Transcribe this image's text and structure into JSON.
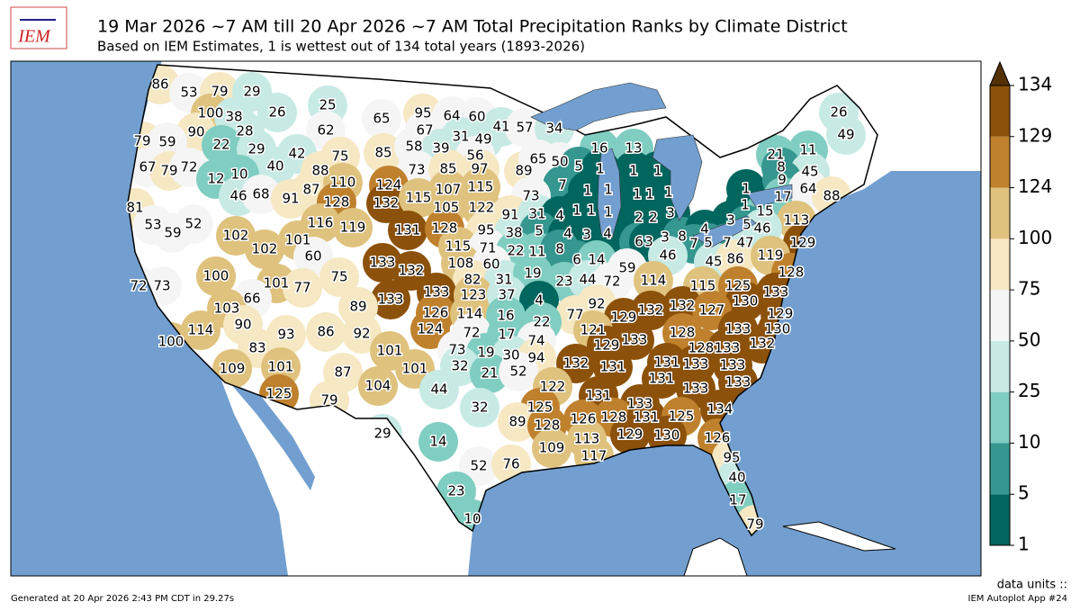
{
  "header": {
    "title": "19 Mar 2026 ~7 AM till 20 Apr 2026 ~7 AM Total Precipitation Ranks by Climate District",
    "subtitle": "Based on IEM Estimates, 1 is wettest out of 134 total years (1893-2026)",
    "logo": "IEM"
  },
  "map": {
    "ranks": [
      86,
      53,
      79,
      29,
      100,
      38,
      90,
      28,
      26,
      25,
      65,
      95,
      64,
      60,
      62,
      67,
      31,
      49,
      41,
      57,
      34,
      79,
      59,
      22,
      29,
      42,
      75,
      85,
      58,
      39,
      56,
      16,
      13,
      21,
      11,
      26,
      49,
      67,
      79,
      72,
      40,
      88,
      73,
      85,
      97,
      89,
      65,
      50,
      5,
      1,
      1,
      1,
      8,
      45,
      12,
      10,
      87,
      110,
      124,
      107,
      115,
      7,
      1,
      1,
      1,
      1,
      1,
      1,
      9,
      17,
      64,
      88,
      81,
      46,
      68,
      91,
      128,
      132,
      115,
      105,
      122,
      73,
      91,
      31,
      4,
      1,
      1,
      1,
      2,
      2,
      3,
      1,
      3,
      15,
      113,
      53,
      52,
      116,
      119,
      131,
      128,
      95,
      38,
      5,
      4,
      3,
      4,
      5,
      46,
      59,
      102,
      102,
      101,
      115,
      71,
      22,
      11,
      8,
      6,
      3,
      3,
      8,
      4,
      7,
      5,
      7,
      47,
      129,
      60,
      108,
      60,
      6,
      14,
      46,
      45,
      86,
      119,
      133,
      132,
      128,
      100,
      75,
      82,
      31,
      19,
      59,
      72,
      73,
      101,
      77,
      133,
      133,
      123,
      37,
      23,
      44,
      72,
      114,
      115,
      125,
      133,
      66,
      89,
      4,
      92,
      130,
      129,
      103,
      126,
      114,
      16,
      77,
      132,
      132,
      127,
      22,
      129,
      90,
      93,
      86,
      92,
      124,
      72,
      17,
      74,
      121,
      128,
      133,
      130,
      114,
      100,
      129,
      133,
      128,
      133,
      132,
      83,
      101,
      73,
      19,
      30,
      94,
      132,
      131,
      131,
      133,
      133,
      109,
      101,
      87,
      101,
      32,
      21,
      52,
      131,
      133,
      104,
      44,
      122,
      131,
      133,
      125,
      79,
      133,
      32,
      125,
      134,
      89,
      128,
      126,
      128,
      131,
      125,
      29,
      113,
      129,
      130,
      126,
      14,
      109,
      117,
      95,
      52,
      76,
      40,
      23,
      17,
      10,
      79
    ]
  },
  "colorbar": {
    "ticks": [
      1,
      5,
      10,
      25,
      50,
      75,
      100,
      124,
      129,
      134
    ],
    "colors": [
      "#01665e",
      "#35978f",
      "#80cdc1",
      "#c7eae5",
      "#f5f5f5",
      "#f6e8c3",
      "#dfc27d",
      "#bf812d",
      "#8c510a"
    ],
    "extend_color": "#543005"
  },
  "footer": {
    "generated": "Generated at 20 Apr 2026 2:43 PM CDT in 29.27s",
    "units": "data units ::",
    "app": "IEM Autoplot App #24"
  }
}
